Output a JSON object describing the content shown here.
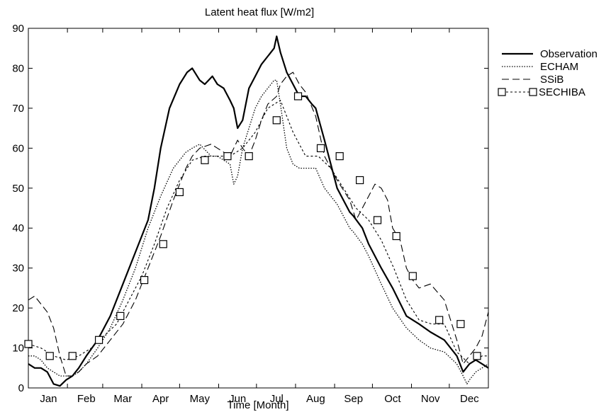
{
  "chart_data": {
    "type": "line",
    "title": "Latent heat flux [W/m2]",
    "xlabel": "Time [Month]",
    "ylabel": "",
    "ylim": [
      0,
      90
    ],
    "yticks": [
      0,
      10,
      20,
      30,
      40,
      50,
      60,
      70,
      80,
      90
    ],
    "xlim": [
      0,
      365
    ],
    "month_labels": [
      "Jan",
      "Feb",
      "Mar",
      "Apr",
      "May",
      "Jun",
      "Jul",
      "Aug",
      "Sep",
      "Oct",
      "Nov",
      "Dec"
    ],
    "month_centers": [
      16,
      46,
      75,
      105,
      136,
      166,
      197,
      228,
      258,
      289,
      319,
      350
    ],
    "grid": false,
    "legend_position": "right",
    "series": [
      {
        "name": "Observation",
        "style": "solid",
        "x": [
          0,
          5,
          10,
          15,
          20,
          25,
          30,
          35,
          40,
          46,
          55,
          65,
          75,
          85,
          95,
          100,
          105,
          112,
          120,
          126,
          130,
          136,
          140,
          146,
          150,
          155,
          160,
          163,
          166,
          170,
          175,
          180,
          185,
          190,
          195,
          197,
          200,
          205,
          210,
          215,
          220,
          225,
          228,
          235,
          245,
          255,
          258,
          265,
          270,
          280,
          289,
          300,
          310,
          319,
          330,
          340,
          345,
          350,
          355,
          360,
          365
        ],
        "y": [
          6,
          5,
          5,
          4,
          1,
          0.5,
          2,
          3,
          5,
          8,
          12,
          18,
          26,
          34,
          42,
          50,
          60,
          70,
          76,
          79,
          80,
          77,
          76,
          78,
          76,
          75,
          72,
          70,
          65,
          67,
          75,
          78,
          81,
          83,
          85,
          88,
          84,
          79,
          76,
          73,
          73,
          71,
          70,
          62,
          50,
          44,
          43,
          40,
          36,
          30,
          25,
          18,
          16,
          14,
          12,
          8,
          4,
          6,
          7,
          6,
          5
        ]
      },
      {
        "name": "ECHAM",
        "style": "dotted",
        "x": [
          0,
          5,
          10,
          15,
          20,
          25,
          30,
          35,
          40,
          46,
          55,
          65,
          75,
          85,
          95,
          105,
          115,
          125,
          130,
          136,
          145,
          150,
          155,
          160,
          163,
          166,
          170,
          175,
          180,
          185,
          190,
          195,
          197,
          200,
          205,
          210,
          215,
          220,
          228,
          235,
          245,
          255,
          258,
          265,
          270,
          280,
          289,
          300,
          310,
          319,
          330,
          340,
          345,
          348,
          350,
          355,
          360,
          365
        ],
        "y": [
          8,
          8,
          7,
          5,
          4,
          3,
          3,
          3,
          4,
          6,
          10,
          15,
          22,
          30,
          40,
          48,
          55,
          59,
          60,
          61,
          58,
          58,
          57,
          56,
          51,
          53,
          60,
          65,
          70,
          73,
          75,
          77,
          77,
          71,
          60,
          56,
          55,
          55,
          55,
          50,
          46,
          40,
          39,
          36,
          33,
          26,
          20,
          15,
          12,
          10,
          9,
          6,
          3,
          1,
          2,
          4,
          5,
          6
        ]
      },
      {
        "name": "SSiB",
        "style": "dashed",
        "x": [
          0,
          5,
          10,
          15,
          20,
          25,
          30,
          35,
          40,
          46,
          55,
          65,
          75,
          85,
          95,
          105,
          115,
          125,
          130,
          136,
          145,
          150,
          155,
          160,
          166,
          170,
          175,
          180,
          185,
          190,
          197,
          200,
          205,
          210,
          215,
          220,
          228,
          235,
          245,
          255,
          258,
          260,
          265,
          270,
          275,
          280,
          285,
          289,
          295,
          300,
          305,
          310,
          319,
          330,
          340,
          345,
          350,
          355,
          360,
          365
        ],
        "y": [
          22,
          23,
          21,
          19,
          15,
          8,
          3,
          3,
          4,
          6,
          8,
          12,
          16,
          22,
          30,
          38,
          47,
          55,
          58,
          60,
          61,
          60,
          59,
          58,
          62,
          60,
          58,
          62,
          67,
          71,
          73,
          76,
          78,
          79,
          76,
          74,
          68,
          58,
          52,
          47,
          44,
          42,
          45,
          48,
          51,
          50,
          47,
          40,
          37,
          30,
          27,
          25,
          26,
          22,
          12,
          6,
          8,
          10,
          13,
          19
        ]
      },
      {
        "name": "SECHIBA",
        "style": "dashed-square",
        "x": [
          0,
          10,
          20,
          30,
          40,
          50,
          60,
          70,
          80,
          90,
          100,
          110,
          120,
          130,
          140,
          150,
          160,
          170,
          180,
          190,
          200,
          210,
          220,
          230,
          240,
          250,
          260,
          270,
          280,
          290,
          300,
          310,
          320,
          330,
          340,
          350,
          360,
          365
        ],
        "y": [
          11,
          10,
          8,
          7,
          8,
          10,
          13,
          16,
          22,
          28,
          36,
          45,
          52,
          57,
          58,
          58,
          58,
          60,
          64,
          70,
          72,
          64,
          58,
          58,
          55,
          50,
          45,
          42,
          37,
          30,
          22,
          17,
          16,
          16,
          9,
          6,
          8,
          8
        ]
      }
    ],
    "series_markers": {
      "SECHIBA": {
        "x": [
          0,
          17,
          35,
          56,
          73,
          92,
          107,
          120,
          140,
          158,
          175,
          197,
          214,
          232,
          247,
          263,
          277,
          292,
          305,
          326,
          343,
          356
        ],
        "y": [
          11,
          8,
          8,
          12,
          18,
          27,
          36,
          49,
          57,
          58,
          58,
          67,
          73,
          60,
          58,
          52,
          42,
          38,
          28,
          17,
          16,
          8
        ]
      }
    }
  }
}
